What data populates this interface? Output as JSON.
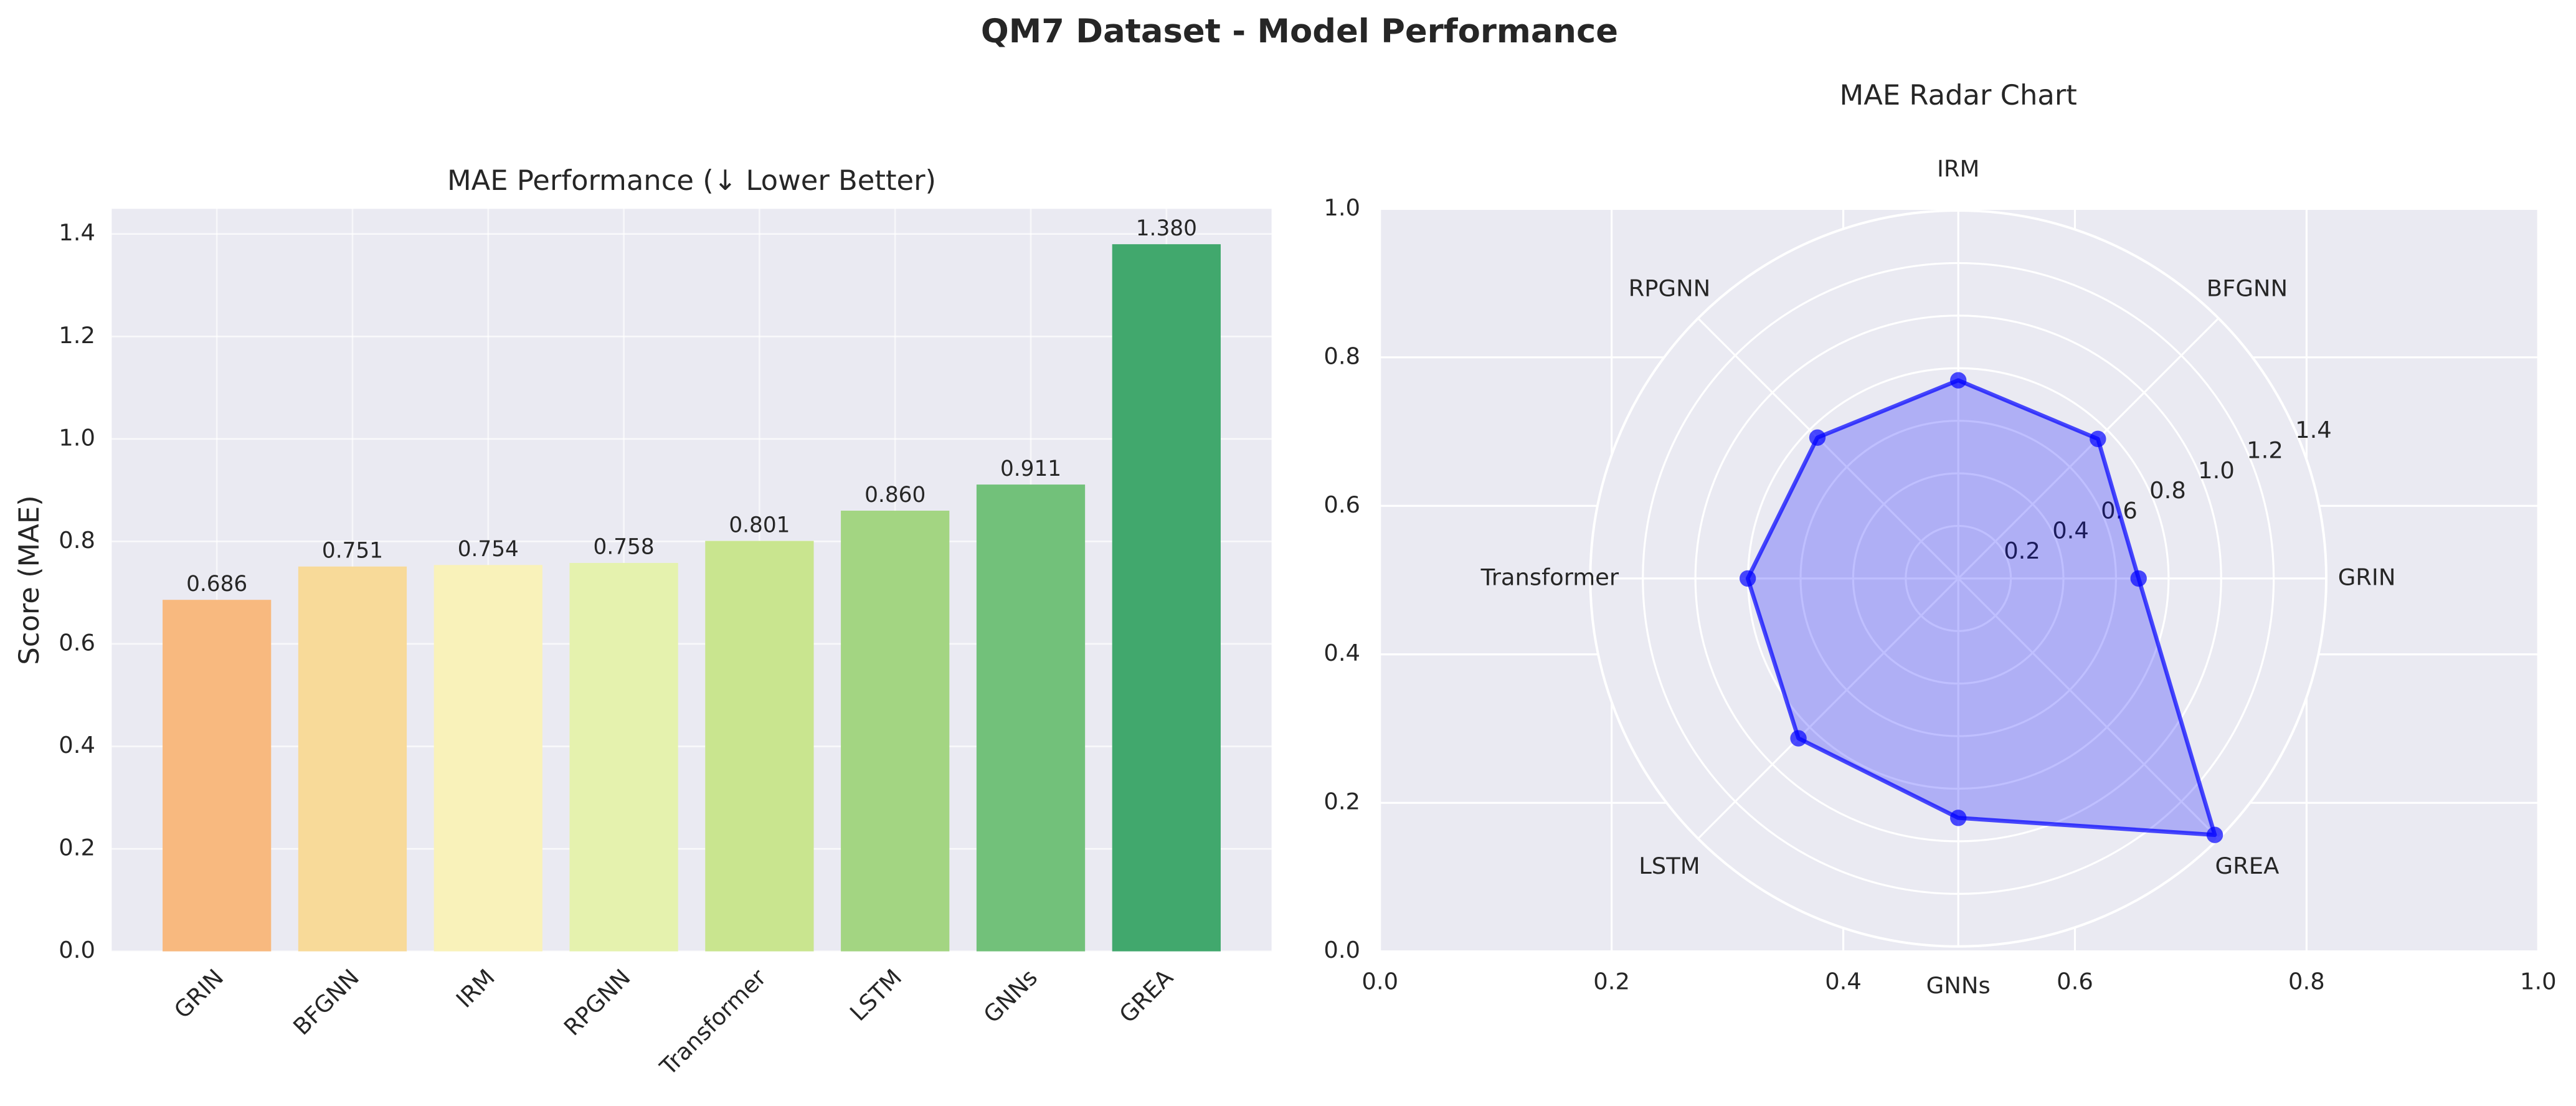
{
  "title": "QM7 Dataset - Model Performance",
  "chart_data": [
    {
      "type": "bar",
      "title": "MAE Performance (↓ Lower Better)",
      "ylabel": "Score (MAE)",
      "categories": [
        "GRIN",
        "BFGNN",
        "IRM",
        "RPGNN",
        "Transformer",
        "LSTM",
        "GNNs",
        "GREA"
      ],
      "values": [
        0.686,
        0.751,
        0.754,
        0.758,
        0.801,
        0.86,
        0.911,
        1.38
      ],
      "value_labels": [
        "0.686",
        "0.751",
        "0.754",
        "0.758",
        "0.801",
        "0.860",
        "0.911",
        "1.380"
      ],
      "colors": [
        "#f8b97f",
        "#f8da99",
        "#f9f2ba",
        "#e5f2ae",
        "#c9e58f",
        "#a3d582",
        "#72c17a",
        "#41a86d"
      ],
      "ylim": [
        0,
        1.449
      ],
      "yticks": [
        {
          "value": 0,
          "label": "0.0"
        },
        0.2,
        0.4,
        0.6,
        0.8,
        {
          "value": 1,
          "label": "1.0"
        },
        1.2,
        1.4
      ],
      "grid": true
    },
    {
      "type": "radar",
      "title": "MAE Radar Chart",
      "categories": [
        "GRIN",
        "BFGNN",
        "IRM",
        "RPGNN",
        "Transformer",
        "LSTM",
        "GNNs",
        "GREA"
      ],
      "values": [
        0.686,
        0.751,
        0.754,
        0.758,
        0.801,
        0.86,
        0.911,
        1.38
      ],
      "color": "#0000ff",
      "rlim": [
        0,
        1.4
      ],
      "rticks": [
        0.2,
        0.4,
        0.6,
        0.8,
        {
          "value": 1,
          "label": "1.0"
        },
        1.2,
        1.4
      ],
      "xlim": [
        0,
        1
      ],
      "xticks": [
        {
          "value": 0,
          "label": "0.0"
        },
        0.2,
        0.4,
        0.6,
        0.8,
        {
          "value": 1,
          "label": "1.0"
        }
      ],
      "ylim": [
        0,
        1
      ],
      "yticks": [
        {
          "value": 0,
          "label": "0.0"
        },
        0.2,
        0.4,
        0.6,
        0.8,
        {
          "value": 1,
          "label": "1.0"
        }
      ],
      "grid": true
    }
  ]
}
